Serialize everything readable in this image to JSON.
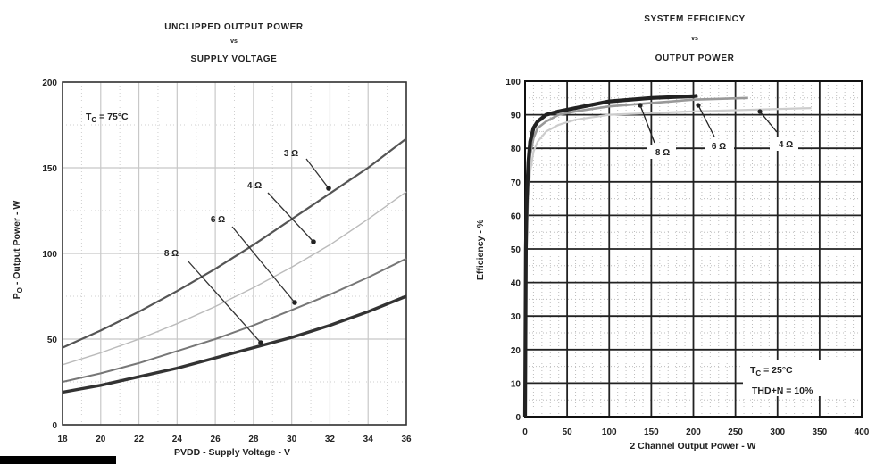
{
  "chart_data": [
    {
      "type": "line",
      "title": [
        "UNCLIPPED OUTPUT POWER",
        "vs",
        "SUPPLY VOLTAGE"
      ],
      "xlabel": "PVDD - Supply Voltage - V",
      "ylabel_main": "P",
      "ylabel_sub": "O",
      "ylabel_rest": " - Output Power - W",
      "xlim": [
        18,
        36
      ],
      "ylim": [
        0,
        200
      ],
      "x_ticks": [
        18,
        20,
        22,
        24,
        26,
        28,
        30,
        32,
        34,
        36
      ],
      "y_ticks": [
        0,
        50,
        100,
        150,
        200
      ],
      "grid": true,
      "annotation": {
        "text_main": "T",
        "text_sub": "C",
        "text_rest": " = 75°C"
      },
      "series": [
        {
          "name": "3 Ω",
          "x": [
            18,
            20,
            22,
            24,
            26,
            28,
            30,
            32,
            34,
            36
          ],
          "y": [
            45,
            55,
            66,
            78,
            91,
            105,
            120,
            135,
            150,
            167
          ]
        },
        {
          "name": "4 Ω",
          "x": [
            18,
            20,
            22,
            24,
            26,
            28,
            30,
            32,
            34,
            36
          ],
          "y": [
            35,
            42,
            50,
            59,
            69,
            80,
            92,
            105,
            120,
            136
          ]
        },
        {
          "name": "6 Ω",
          "x": [
            18,
            20,
            22,
            24,
            26,
            28,
            30,
            32,
            34,
            36
          ],
          "y": [
            25,
            30,
            36,
            43,
            50,
            58,
            67,
            76,
            86,
            97
          ]
        },
        {
          "name": "8 Ω",
          "x": [
            18,
            20,
            22,
            24,
            26,
            28,
            30,
            32,
            34,
            36
          ],
          "y": [
            19,
            23,
            28,
            33,
            39,
            45,
            51,
            58,
            66,
            75
          ]
        }
      ],
      "colors": {
        "3 Ω": "#555555",
        "4 Ω": "#bbbbbb",
        "6 Ω": "#777777",
        "8 Ω": "#333333"
      }
    },
    {
      "type": "line",
      "title": [
        "SYSTEM EFFICIENCY",
        "vs",
        "OUTPUT POWER"
      ],
      "xlabel": "2 Channel Output Power - W",
      "ylabel": "Efficiency - %",
      "xlim": [
        0,
        400
      ],
      "ylim": [
        0,
        100
      ],
      "x_ticks": [
        0,
        50,
        100,
        150,
        200,
        250,
        300,
        350,
        400
      ],
      "y_ticks": [
        0,
        10,
        20,
        30,
        40,
        50,
        60,
        70,
        80,
        90,
        100
      ],
      "grid": true,
      "annotation": {
        "line1_main": "T",
        "line1_sub": "C",
        "line1_rest": " = 25°C",
        "line2": "THD+N = 10%"
      },
      "series": [
        {
          "name": "8 Ω",
          "x": [
            0,
            1,
            2,
            4,
            6,
            10,
            15,
            25,
            40,
            60,
            100,
            150,
            200,
            205
          ],
          "y": [
            0,
            50,
            65,
            76,
            82,
            86,
            88,
            90,
            91,
            92,
            94,
            95,
            95.5,
            95.7
          ]
        },
        {
          "name": "6 Ω",
          "x": [
            0,
            1,
            2,
            4,
            6,
            10,
            15,
            25,
            40,
            60,
            100,
            150,
            200,
            265
          ],
          "y": [
            0,
            45,
            60,
            72,
            78,
            83,
            86,
            88,
            90,
            91,
            92.5,
            93.5,
            94.5,
            95
          ]
        },
        {
          "name": "4 Ω",
          "x": [
            0,
            1,
            2,
            4,
            6,
            10,
            15,
            25,
            40,
            60,
            100,
            150,
            200,
            270,
            340
          ],
          "y": [
            0,
            40,
            55,
            66,
            73,
            79,
            82,
            85,
            87,
            88.5,
            90,
            90.5,
            91,
            91.5,
            92
          ]
        }
      ],
      "colors": {
        "8 Ω": "#222222",
        "6 Ω": "#999999",
        "4 Ω": "#cccccc"
      }
    }
  ]
}
